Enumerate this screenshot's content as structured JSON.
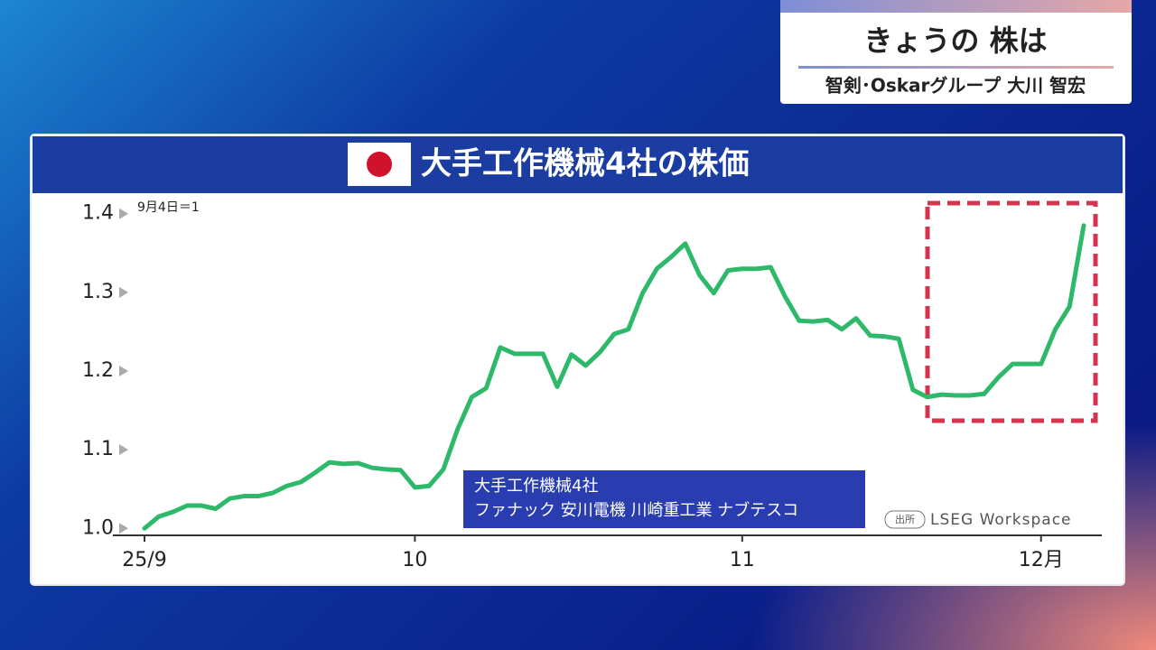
{
  "header": {
    "title": "きょうの 株は",
    "guest": "智剣･Oskarグループ 大川 智宏"
  },
  "chart_data": {
    "type": "line",
    "title": "大手工作機械4社の株価",
    "note": "9月4日＝1",
    "categories": [
      "25/9",
      null,
      null,
      null,
      null,
      null,
      null,
      null,
      null,
      null,
      null,
      null,
      null,
      null,
      null,
      null,
      null,
      null,
      null,
      "10",
      null,
      null,
      null,
      null,
      null,
      null,
      null,
      null,
      null,
      null,
      null,
      null,
      null,
      null,
      null,
      null,
      null,
      null,
      null,
      null,
      null,
      null,
      "11",
      null,
      null,
      null,
      null,
      null,
      null,
      null,
      null,
      null,
      null,
      null,
      null,
      null,
      null,
      null,
      null,
      null,
      null,
      null,
      null,
      "12月",
      null,
      null,
      null
    ],
    "series": [
      {
        "name": "大手工作機械4社",
        "members": "ファナック 安川電機 川崎重工業 ナブテスコ",
        "color": "#2db86a",
        "values": [
          1.0,
          1.015,
          1.021,
          1.029,
          1.029,
          1.025,
          1.038,
          1.041,
          1.041,
          1.045,
          1.054,
          1.059,
          1.071,
          1.084,
          1.082,
          1.083,
          1.077,
          1.075,
          1.074,
          1.052,
          1.054,
          1.075,
          1.126,
          1.167,
          1.178,
          1.23,
          1.222,
          1.222,
          1.222,
          1.18,
          1.221,
          1.207,
          1.224,
          1.247,
          1.253,
          1.299,
          1.33,
          1.345,
          1.362,
          1.322,
          1.299,
          1.328,
          1.33,
          1.33,
          1.332,
          1.295,
          1.264,
          1.263,
          1.265,
          1.253,
          1.267,
          1.245,
          1.244,
          1.241,
          1.176,
          1.167,
          1.17,
          1.169,
          1.169,
          1.171,
          1.192,
          1.209,
          1.209,
          1.209,
          1.253,
          1.282,
          1.385
        ]
      }
    ],
    "ylim": [
      0.99,
      1.41
    ],
    "yticks": [
      {
        "value": 1,
        "label": "1.0"
      },
      1.1,
      1.2,
      1.3,
      1.4
    ],
    "source": {
      "label": "出所",
      "text": "LSEG Workspace"
    }
  }
}
